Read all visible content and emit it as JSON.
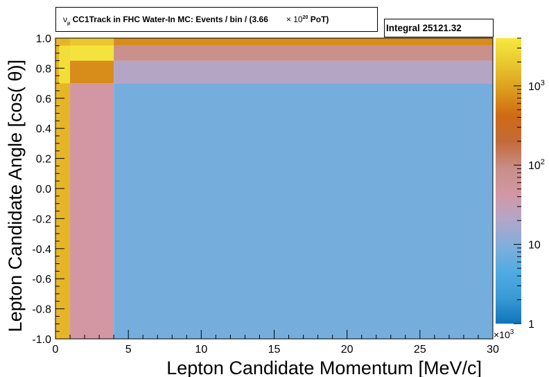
{
  "title": {
    "nu_symbol": "ν",
    "mu_subscript": "μ",
    "text": " CC1Track in FHC Water-In MC: Events / bin / (3.66",
    "times": "× 10",
    "exponent": "20",
    "suffix": " PoT)"
  },
  "stats": {
    "label": "Integral 25121.32"
  },
  "chart_data": {
    "type": "heatmap",
    "title": "CC1Track in FHC Water-In MC: Events / bin / (3.66 × 10^20 PoT)",
    "xlabel": "Lepton Candidate Momentum [MeV/c]",
    "ylabel": "Lepton Candidate Angle [cos(  θ)]",
    "xlim": [
      0,
      30
    ],
    "ylim": [
      -1.0,
      1.0
    ],
    "x_multiplier_label": "×10",
    "x_multiplier_exponent": "3",
    "x_ticks": [
      "0",
      "5",
      "10",
      "15",
      "20",
      "25",
      "30"
    ],
    "y_ticks": [
      "-1.0",
      "-0.8",
      "-0.6",
      "-0.4",
      "-0.2",
      "0.0",
      "0.2",
      "0.4",
      "0.6",
      "0.8",
      "1.0"
    ],
    "color_scale": "log",
    "z_range": [
      1,
      4000
    ],
    "z_ticks": [
      {
        "value": 1,
        "base": "1",
        "exp": ""
      },
      {
        "value": 10,
        "base": "10",
        "exp": ""
      },
      {
        "value": 100,
        "base": "10",
        "exp": "2"
      },
      {
        "value": 1000,
        "base": "10",
        "exp": "3"
      }
    ],
    "colormap": [
      "#0f75b9",
      "#3a9ad6",
      "#50ace1",
      "#81aedc",
      "#b2a6c8",
      "#d297a4",
      "#c88e86",
      "#c36a3a",
      "#cf6a15",
      "#dc9b1c",
      "#eac62f",
      "#f6e83f"
    ],
    "bins": [
      {
        "x": [
          0,
          0.25
        ],
        "y": [
          -1.0,
          0.95
        ],
        "z": 1400
      },
      {
        "x": [
          0,
          0.25
        ],
        "y": [
          0.95,
          1.0
        ],
        "z": 1400
      },
      {
        "x": [
          0.25,
          1.0
        ],
        "y": [
          -1.0,
          0.7
        ],
        "z": 1400
      },
      {
        "x": [
          0.25,
          1.0
        ],
        "y": [
          0.7,
          0.95
        ],
        "z": 3200
      },
      {
        "x": [
          0.25,
          1.0
        ],
        "y": [
          0.95,
          1.0
        ],
        "z": 1400
      },
      {
        "x": [
          1.0,
          4.0
        ],
        "y": [
          -1.0,
          0.7
        ],
        "z": 45
      },
      {
        "x": [
          1.0,
          4.0
        ],
        "y": [
          0.7,
          0.85
        ],
        "z": 700
      },
      {
        "x": [
          1.0,
          4.0
        ],
        "y": [
          0.85,
          0.95
        ],
        "z": 3600
      },
      {
        "x": [
          1.0,
          4.0
        ],
        "y": [
          0.95,
          1.0
        ],
        "z": 1900
      },
      {
        "x": [
          4.0,
          30.0
        ],
        "y": [
          -1.0,
          0.7
        ],
        "z": 8
      },
      {
        "x": [
          4.0,
          30.0
        ],
        "y": [
          0.7,
          0.85
        ],
        "z": 22
      },
      {
        "x": [
          4.0,
          30.0
        ],
        "y": [
          0.85,
          0.95
        ],
        "z": 80
      },
      {
        "x": [
          4.0,
          30.0
        ],
        "y": [
          0.95,
          1.0
        ],
        "z": 700
      }
    ]
  }
}
